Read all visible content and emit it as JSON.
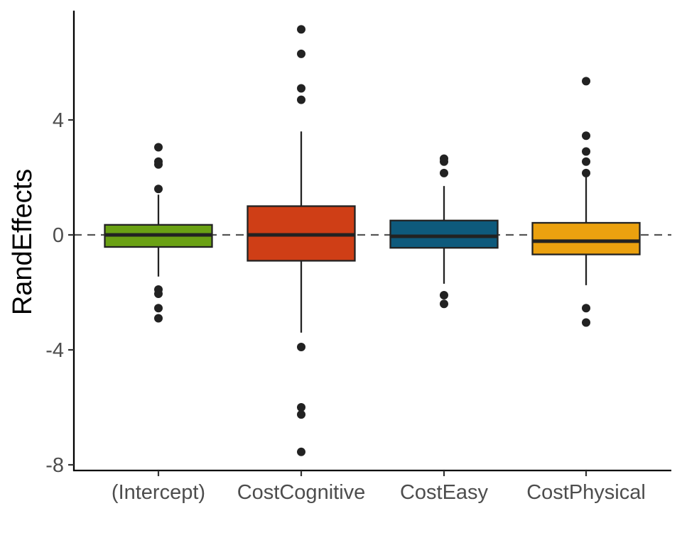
{
  "chart_data": {
    "type": "boxplot",
    "ylabel": "RandEffects",
    "xlabel": "",
    "ylim": [
      -8.1,
      7.85
    ],
    "yticks": [
      -8,
      -4,
      0,
      4
    ],
    "ytick_labels": [
      "-8",
      "-4",
      "0",
      "4"
    ],
    "reference_line": {
      "y": 0,
      "style": "dashed"
    },
    "grid": false,
    "legend": "none",
    "categories": [
      "(Intercept)",
      "CostCognitive",
      "CostEasy",
      "CostPhysical"
    ],
    "boxes": [
      {
        "name": "(Intercept)",
        "fill": "#6aa114",
        "q1": -0.42,
        "median": 0.0,
        "q3": 0.35,
        "whisker_low": -1.45,
        "whisker_high": 1.4,
        "outliers": [
          3.05,
          2.55,
          2.45,
          1.6,
          -1.9,
          -2.05,
          -2.55,
          -2.9
        ]
      },
      {
        "name": "CostCognitive",
        "fill": "#cf3e16",
        "q1": -0.9,
        "median": 0.0,
        "q3": 1.0,
        "whisker_low": -3.4,
        "whisker_high": 3.6,
        "outliers": [
          7.15,
          6.3,
          5.1,
          4.7,
          -3.9,
          -6.0,
          -6.25,
          -7.55
        ]
      },
      {
        "name": "CostEasy",
        "fill": "#0e5a7c",
        "q1": -0.45,
        "median": -0.05,
        "q3": 0.5,
        "whisker_low": -1.7,
        "whisker_high": 1.7,
        "outliers": [
          2.65,
          2.55,
          2.15,
          -2.1,
          -2.4
        ]
      },
      {
        "name": "CostPhysical",
        "fill": "#eba10f",
        "q1": -0.68,
        "median": -0.22,
        "q3": 0.42,
        "whisker_low": -1.75,
        "whisker_high": 2.2,
        "outliers": [
          5.35,
          3.45,
          2.9,
          2.55,
          2.15,
          -2.55,
          -3.05
        ]
      }
    ]
  }
}
